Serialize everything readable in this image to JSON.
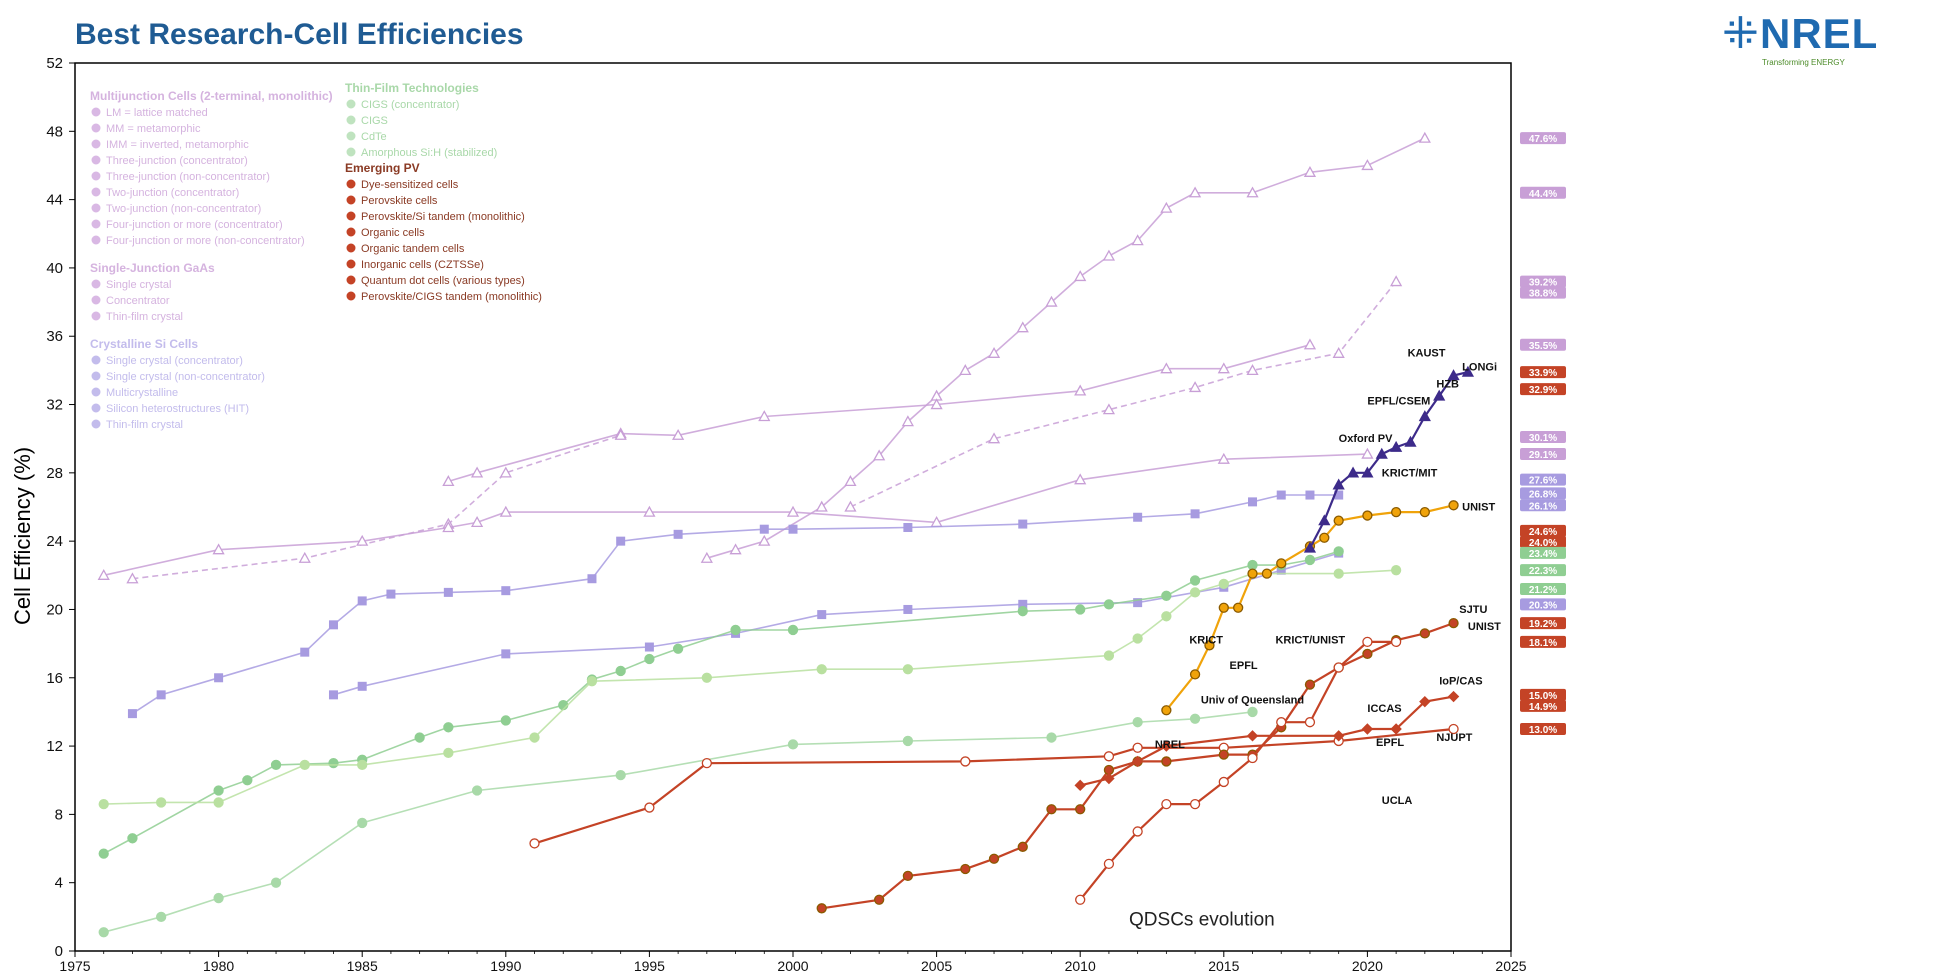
{
  "header": {
    "title": "Best Research-Cell Efficiencies",
    "logo_text": "NREL",
    "logo_tagline": "Transforming ENERGY",
    "brand_color": "#1f5b93"
  },
  "chart_data": {
    "type": "line",
    "title": "Best Research-Cell Efficiencies",
    "xlabel": "",
    "ylabel": "Cell Efficiency (%)",
    "xlim": [
      1975,
      2025
    ],
    "ylim": [
      0,
      52
    ],
    "x_ticks": [
      1975,
      1980,
      1985,
      1990,
      1995,
      2000,
      2005,
      2010,
      2015,
      2020,
      2025
    ],
    "y_ticks": [
      0,
      4,
      8,
      12,
      16,
      20,
      24,
      28,
      32,
      36,
      40,
      44,
      48,
      52
    ],
    "grid": false,
    "legend_placement": "top-left",
    "series": [
      {
        "group": "multijunction",
        "color": "#c89fd6",
        "marker": "tri",
        "dashed": false,
        "x": [
          1997,
          1998,
          1999,
          2001,
          2002,
          2003,
          2004,
          2005,
          2006,
          2007,
          2008,
          2009,
          2010,
          2011,
          2012,
          2013,
          2014,
          2016,
          2018,
          2020,
          2022
        ],
        "y": [
          23.0,
          23.5,
          24.0,
          26.0,
          27.5,
          29.0,
          31.0,
          32.5,
          34.0,
          35.0,
          36.5,
          38.0,
          39.5,
          40.7,
          41.6,
          43.5,
          44.4,
          44.4,
          45.6,
          46.0,
          47.6
        ]
      },
      {
        "group": "multijunction",
        "color": "#c89fd6",
        "marker": "tri",
        "dashed": false,
        "x": [
          1988,
          1989,
          1994,
          1996,
          1999,
          2005,
          2010,
          2013,
          2015,
          2018
        ],
        "y": [
          27.5,
          28.0,
          30.3,
          30.2,
          31.3,
          32.0,
          32.8,
          34.1,
          34.1,
          35.5
        ]
      },
      {
        "group": "multijunction",
        "color": "#c89fd6",
        "marker": "tri",
        "dashed": true,
        "x": [
          1977,
          1983,
          1988,
          1990,
          1994
        ],
        "y": [
          21.8,
          23.0,
          25.0,
          28.0,
          30.2
        ]
      },
      {
        "group": "multijunction",
        "color": "#c89fd6",
        "marker": "tri",
        "dashed": true,
        "x": [
          2002,
          2007,
          2011,
          2014,
          2016,
          2019,
          2021
        ],
        "y": [
          26.0,
          30.0,
          31.7,
          33.0,
          34.0,
          35.0,
          39.2
        ]
      },
      {
        "group": "single-junction GaAs",
        "color": "#c89fd6",
        "marker": "tri",
        "dashed": false,
        "x": [
          1976,
          1980,
          1985,
          1988,
          1989,
          1990,
          1995,
          2000,
          2005,
          2010,
          2015,
          2020
        ],
        "y": [
          22.0,
          23.5,
          24.0,
          24.8,
          25.1,
          25.7,
          25.7,
          25.7,
          25.1,
          27.6,
          28.8,
          29.1
        ]
      },
      {
        "group": "crystalline Si",
        "color": "#a79be0",
        "marker": "square",
        "dashed": false,
        "x": [
          1977,
          1978,
          1980,
          1983,
          1984,
          1985,
          1986,
          1988,
          1990,
          1993,
          1994,
          1996,
          1999,
          2000,
          2004,
          2008,
          2012,
          2014,
          2016,
          2017,
          2018,
          2019
        ],
        "y": [
          13.9,
          15.0,
          16.0,
          17.5,
          19.1,
          20.5,
          20.9,
          21.0,
          21.1,
          21.8,
          24.0,
          24.4,
          24.7,
          24.7,
          24.8,
          25.0,
          25.4,
          25.6,
          26.3,
          26.7,
          26.7,
          26.7
        ]
      },
      {
        "group": "crystalline Si",
        "color": "#a79be0",
        "marker": "square",
        "dashed": false,
        "x": [
          1984,
          1985,
          1990,
          1995,
          1998,
          2001,
          2004,
          2008,
          2012,
          2015,
          2017,
          2019
        ],
        "y": [
          15.0,
          15.5,
          17.4,
          17.8,
          18.6,
          19.7,
          20.0,
          20.3,
          20.4,
          21.3,
          22.3,
          23.3
        ]
      },
      {
        "group": "thin-film CIGS",
        "color": "#8fce92",
        "marker": "circle",
        "dashed": false,
        "x": [
          1976,
          1977,
          1980,
          1981,
          1982,
          1984,
          1985,
          1987,
          1988,
          1990,
          1992,
          1993,
          1994,
          1995,
          1996,
          1998,
          2000,
          2008,
          2010,
          2011,
          2013,
          2014,
          2016,
          2017,
          2018,
          2019
        ],
        "y": [
          5.7,
          6.6,
          9.4,
          10.0,
          10.9,
          11.0,
          11.2,
          12.5,
          13.1,
          13.5,
          14.4,
          15.9,
          16.4,
          17.1,
          17.7,
          18.8,
          18.8,
          19.9,
          20.0,
          20.3,
          20.8,
          21.7,
          22.6,
          22.6,
          22.9,
          23.4
        ]
      },
      {
        "group": "thin-film CdTe",
        "color": "#b9e0a0",
        "marker": "circle",
        "dashed": false,
        "x": [
          1976,
          1978,
          1980,
          1983,
          1985,
          1988,
          1991,
          1993,
          1997,
          2001,
          2004,
          2011,
          2012,
          2013,
          2014,
          2015,
          2016,
          2019,
          2021
        ],
        "y": [
          8.6,
          8.7,
          8.7,
          10.9,
          10.9,
          11.6,
          12.5,
          15.8,
          16.0,
          16.5,
          16.5,
          17.3,
          18.3,
          19.6,
          21.0,
          21.5,
          22.1,
          22.1,
          22.3
        ]
      },
      {
        "group": "amorphous Si",
        "color": "#a8d9a8",
        "marker": "circle",
        "dashed": false,
        "x": [
          1976,
          1978,
          1980,
          1982,
          1985,
          1989,
          1994,
          2000,
          2004,
          2009,
          2012,
          2014,
          2016
        ],
        "y": [
          1.1,
          2.0,
          3.1,
          4.0,
          7.5,
          9.4,
          10.3,
          12.1,
          12.3,
          12.5,
          13.4,
          13.6,
          14.0
        ]
      },
      {
        "group": "emerging dye",
        "color": "#c44326",
        "marker": "circle-open",
        "dashed": false,
        "x": [
          1991,
          1995,
          1997,
          2006,
          2011,
          2012,
          2015,
          2019,
          2023
        ],
        "y": [
          6.3,
          8.4,
          11.0,
          11.1,
          11.4,
          11.9,
          11.9,
          12.3,
          13.0
        ]
      },
      {
        "group": "emerging perovskite",
        "color": "#f0a30a",
        "marker": "circle-filled",
        "dashed": false,
        "x": [
          2013,
          2014,
          2014.5,
          2015,
          2015.5,
          2016,
          2016.5,
          2017,
          2018,
          2018.5,
          2019,
          2020,
          2021,
          2022,
          2023
        ],
        "y": [
          14.1,
          16.2,
          17.9,
          20.1,
          20.1,
          22.1,
          22.1,
          22.7,
          23.7,
          24.2,
          25.2,
          25.5,
          25.7,
          25.7,
          26.1
        ]
      },
      {
        "group": "emerging perovskite/Si tandem",
        "color": "#3d2b8a",
        "marker": "tri-filled",
        "dashed": false,
        "x": [
          2018,
          2018.5,
          2019,
          2019.5,
          2020,
          2020.5,
          2021,
          2021.5,
          2022,
          2022.5,
          2023,
          2023.5
        ],
        "y": [
          23.6,
          25.2,
          27.3,
          28.0,
          28.0,
          29.1,
          29.5,
          29.8,
          31.3,
          32.5,
          33.7,
          33.9
        ]
      },
      {
        "group": "emerging organic",
        "color": "#c44326",
        "marker": "circle-filled",
        "dashed": false,
        "x": [
          2001,
          2003,
          2004,
          2006,
          2007,
          2008,
          2009,
          2010,
          2011,
          2012,
          2013,
          2015,
          2016,
          2017,
          2018,
          2019,
          2020,
          2021,
          2022,
          2023
        ],
        "y": [
          2.5,
          3.0,
          4.4,
          4.8,
          5.4,
          6.1,
          8.3,
          8.3,
          10.6,
          11.1,
          11.1,
          11.5,
          11.5,
          13.1,
          15.6,
          16.6,
          17.4,
          18.2,
          18.6,
          19.2
        ]
      },
      {
        "group": "emerging quantum dot",
        "color": "#c44326",
        "marker": "circle-open",
        "dashed": false,
        "x": [
          2010,
          2011,
          2012,
          2013,
          2014,
          2015,
          2016,
          2017,
          2018,
          2019,
          2020,
          2021
        ],
        "y": [
          3.0,
          5.1,
          7.0,
          8.6,
          8.6,
          9.9,
          11.3,
          13.4,
          13.4,
          16.6,
          18.1,
          18.1
        ]
      },
      {
        "group": "emerging inorganic CZTSSe",
        "color": "#c44326",
        "marker": "diamond",
        "dashed": false,
        "x": [
          2010,
          2011,
          2012,
          2013,
          2016,
          2019,
          2020,
          2021,
          2022,
          2023
        ],
        "y": [
          9.7,
          10.1,
          11.1,
          12.0,
          12.6,
          12.6,
          13.0,
          13.0,
          14.6,
          14.9
        ]
      }
    ],
    "legend": {
      "multijunction_title": "Multijunction Cells (2-terminal, monolithic)",
      "multijunction_items": [
        "LM = lattice matched",
        "MM = metamorphic",
        "IMM = inverted, metamorphic",
        "Three-junction (concentrator)",
        "Three-junction (non-concentrator)",
        "Two-junction (concentrator)",
        "Two-junction (non-concentrator)",
        "Four-junction or more (concentrator)",
        "Four-junction or more (non-concentrator)"
      ],
      "single_title": "Single-Junction GaAs",
      "single_items": [
        "Single crystal",
        "Concentrator",
        "Thin-film crystal"
      ],
      "si_title": "Crystalline Si Cells",
      "si_items": [
        "Single crystal (concentrator)",
        "Single crystal (non-concentrator)",
        "Multicrystalline",
        "Silicon heterostructures (HIT)",
        "Thin-film crystal"
      ],
      "thin_title": "Thin-Film Technologies",
      "thin_items": [
        "CIGS (concentrator)",
        "CIGS",
        "CdTe",
        "Amorphous Si:H (stabilized)"
      ],
      "emerging_title": "Emerging PV",
      "emerging_items": [
        "Dye-sensitized cells",
        "Perovskite cells",
        "Perovskite/Si tandem (monolithic)",
        "Organic cells",
        "Organic tandem cells",
        "Inorganic cells (CZTSSe)",
        "Quantum dot cells (various types)",
        "Perovskite/CIGS tandem (monolithic)"
      ]
    },
    "annotations": [
      {
        "text": "QDSCs evolution",
        "x": 2011.7,
        "y": 1.5
      },
      {
        "text": "KAUST",
        "x": 2021.4,
        "y": 34.8
      },
      {
        "text": "LONGi",
        "x": 2023.3,
        "y": 34.0
      },
      {
        "text": "HZB",
        "x": 2022.4,
        "y": 33.0
      },
      {
        "text": "EPFL/CSEM",
        "x": 2020.0,
        "y": 32.0
      },
      {
        "text": "Oxford PV",
        "x": 2019.0,
        "y": 29.8
      },
      {
        "text": "KRICT/MIT",
        "x": 2020.5,
        "y": 27.8
      },
      {
        "text": "UNIST",
        "x": 2023.3,
        "y": 25.8
      },
      {
        "text": "KRICT",
        "x": 2013.8,
        "y": 18.0
      },
      {
        "text": "EPFL",
        "x": 2015.2,
        "y": 16.5
      },
      {
        "text": "KRICT/UNIST",
        "x": 2016.8,
        "y": 18.0
      },
      {
        "text": "Univ of Queensland",
        "x": 2014.2,
        "y": 14.5
      },
      {
        "text": "SJTU",
        "x": 2023.2,
        "y": 19.8
      },
      {
        "text": "UNIST",
        "x": 2023.5,
        "y": 18.8
      },
      {
        "text": "ICCAS",
        "x": 2020.0,
        "y": 14.0
      },
      {
        "text": "EPFL",
        "x": 2020.3,
        "y": 12.0
      },
      {
        "text": "NJUPT",
        "x": 2022.4,
        "y": 12.3
      },
      {
        "text": "IoP/CAS",
        "x": 2022.5,
        "y": 15.6
      },
      {
        "text": "NREL",
        "x": 2012.6,
        "y": 11.9
      },
      {
        "text": "UCLA",
        "x": 2020.5,
        "y": 8.6
      }
    ],
    "right_badges": [
      {
        "value": "47.6%",
        "y": 47.6,
        "color": "#c89fd6"
      },
      {
        "value": "44.4%",
        "y": 44.4,
        "color": "#c89fd6"
      },
      {
        "value": "39.2%",
        "y": 39.2,
        "color": "#c89fd6"
      },
      {
        "value": "38.8%",
        "y": 38.8,
        "color": "#c89fd6"
      },
      {
        "value": "35.5%",
        "y": 35.5,
        "color": "#c89fd6"
      },
      {
        "value": "33.9%",
        "y": 33.9,
        "color": "#c44326"
      },
      {
        "value": "32.9%",
        "y": 32.9,
        "color": "#c44326"
      },
      {
        "value": "30.1%",
        "y": 30.1,
        "color": "#c89fd6"
      },
      {
        "value": "29.1%",
        "y": 29.1,
        "color": "#c89fd6"
      },
      {
        "value": "27.6%",
        "y": 27.6,
        "color": "#a79be0"
      },
      {
        "value": "26.8%",
        "y": 26.8,
        "color": "#a79be0"
      },
      {
        "value": "26.1%",
        "y": 26.1,
        "color": "#a79be0"
      },
      {
        "value": "24.6%",
        "y": 24.6,
        "color": "#c44326"
      },
      {
        "value": "24.0%",
        "y": 24.0,
        "color": "#c44326"
      },
      {
        "value": "23.4%",
        "y": 23.4,
        "color": "#8fce92"
      },
      {
        "value": "22.3%",
        "y": 22.3,
        "color": "#8fce92"
      },
      {
        "value": "21.2%",
        "y": 21.2,
        "color": "#8fce92"
      },
      {
        "value": "20.3%",
        "y": 20.3,
        "color": "#a79be0"
      },
      {
        "value": "19.2%",
        "y": 19.2,
        "color": "#c44326"
      },
      {
        "value": "18.1%",
        "y": 18.1,
        "color": "#c44326"
      },
      {
        "value": "15.0%",
        "y": 15.0,
        "color": "#c44326"
      },
      {
        "value": "14.9%",
        "y": 14.9,
        "color": "#c44326"
      },
      {
        "value": "13.0%",
        "y": 13.0,
        "color": "#c44326"
      }
    ]
  }
}
